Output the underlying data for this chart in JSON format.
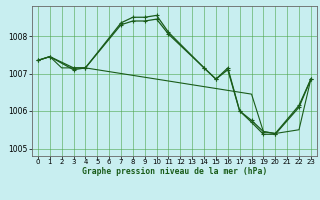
{
  "title": "Graphe pression niveau de la mer (hPa)",
  "background_color": "#c8eef0",
  "grid_color": "#4da64d",
  "line_color": "#1a5c1a",
  "xlim": [
    -0.5,
    23.5
  ],
  "ylim": [
    1004.8,
    1008.8
  ],
  "yticks": [
    1005,
    1006,
    1007,
    1008
  ],
  "xticks": [
    0,
    1,
    2,
    3,
    4,
    5,
    6,
    7,
    8,
    9,
    10,
    11,
    12,
    13,
    14,
    15,
    16,
    17,
    18,
    19,
    20,
    21,
    22,
    23
  ],
  "series1_x": [
    0,
    1,
    2,
    3,
    4,
    5,
    6,
    7,
    8,
    9,
    10,
    11,
    12,
    13,
    14,
    15,
    16,
    17,
    18,
    19,
    20,
    21,
    22,
    23
  ],
  "series1_y": [
    1007.35,
    1007.45,
    1007.15,
    1007.15,
    1007.15,
    1007.1,
    1007.05,
    1007.0,
    1006.95,
    1006.9,
    1006.85,
    1006.8,
    1006.75,
    1006.7,
    1006.65,
    1006.6,
    1006.55,
    1006.5,
    1006.45,
    1005.45,
    1005.4,
    1005.45,
    1005.5,
    1006.85
  ],
  "series2_x": [
    0,
    1,
    3,
    4,
    7,
    8,
    9,
    10,
    11,
    14,
    15,
    16,
    17,
    18,
    19,
    20,
    22,
    23
  ],
  "series2_y": [
    1007.35,
    1007.45,
    1007.15,
    1007.15,
    1008.3,
    1008.4,
    1008.4,
    1008.45,
    1008.05,
    1007.15,
    1006.85,
    1007.1,
    1006.0,
    1005.75,
    1005.45,
    1005.4,
    1006.15,
    1006.85
  ],
  "series3_x": [
    0,
    1,
    3,
    4,
    7,
    8,
    9,
    10,
    11,
    14,
    15,
    16,
    17,
    18,
    19,
    20,
    22,
    23
  ],
  "series3_y": [
    1007.35,
    1007.45,
    1007.1,
    1007.15,
    1008.35,
    1008.5,
    1008.5,
    1008.55,
    1008.1,
    1007.15,
    1006.85,
    1007.15,
    1006.0,
    1005.7,
    1005.38,
    1005.38,
    1006.1,
    1006.85
  ],
  "xlabel_fontsize": 5.8,
  "tick_fontsize": 5.0
}
